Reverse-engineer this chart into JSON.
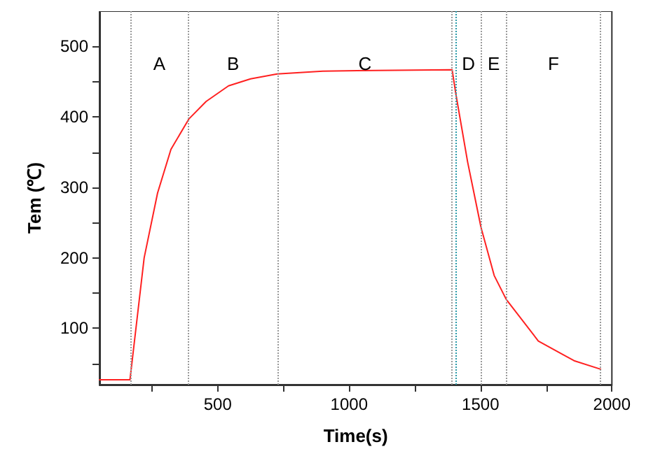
{
  "chart_data": {
    "type": "line",
    "xlabel": "Time(s)",
    "ylabel": "Tem (℃)",
    "x": [
      50,
      166,
      195,
      220,
      271,
      322,
      390,
      456,
      541,
      625,
      726,
      900,
      1100,
      1392,
      1406,
      1451,
      1502,
      1552,
      1598,
      1720,
      1856,
      1957
    ],
    "series": [
      {
        "color": "#ff2020",
        "values": [
          27,
          27,
          120,
          200,
          292,
          354,
          397,
          422,
          444,
          454,
          461,
          465,
          466,
          467,
          433,
          336,
          243,
          175,
          141,
          82,
          54,
          42
        ]
      }
    ],
    "xlim": [
      50,
      2000
    ],
    "ylim": [
      20,
      550
    ],
    "xticks": [
      {
        "value": 250,
        "label": null
      },
      500,
      {
        "value": 750,
        "label": null
      },
      1000,
      {
        "value": 1250,
        "label": null
      },
      1500,
      {
        "value": 1750,
        "label": null
      },
      2000
    ],
    "yticks": [
      {
        "value": 50,
        "label": null
      },
      100,
      {
        "value": 150,
        "label": null
      },
      200,
      {
        "value": 250,
        "label": null
      },
      300,
      {
        "value": 350,
        "label": null
      },
      400,
      {
        "value": 450,
        "label": null
      },
      500
    ],
    "grid": false,
    "marker": "none",
    "line_style": "solid",
    "ref_lines": [
      {
        "axis": "x",
        "value": 166,
        "color": "#999999",
        "line_style": "dotted"
      },
      {
        "axis": "x",
        "value": 389,
        "color": "#999999",
        "line_style": "dotted"
      },
      {
        "axis": "x",
        "value": 728,
        "color": "#999999",
        "line_style": "dotted"
      },
      {
        "axis": "x",
        "value": 1392,
        "color": "#999999",
        "line_style": "dotted"
      },
      {
        "axis": "x",
        "value": 1406,
        "color": "#2a9aa8",
        "line_style": "dotted"
      },
      {
        "axis": "x",
        "value": 1502,
        "color": "#999999",
        "line_style": "dotted"
      },
      {
        "axis": "x",
        "value": 1598,
        "color": "#999999",
        "line_style": "dotted"
      },
      {
        "axis": "x",
        "value": 1957,
        "color": "#999999",
        "line_style": "dotted"
      }
    ],
    "annotations": [
      "A",
      "B",
      "C",
      "D",
      "E",
      "F"
    ]
  }
}
